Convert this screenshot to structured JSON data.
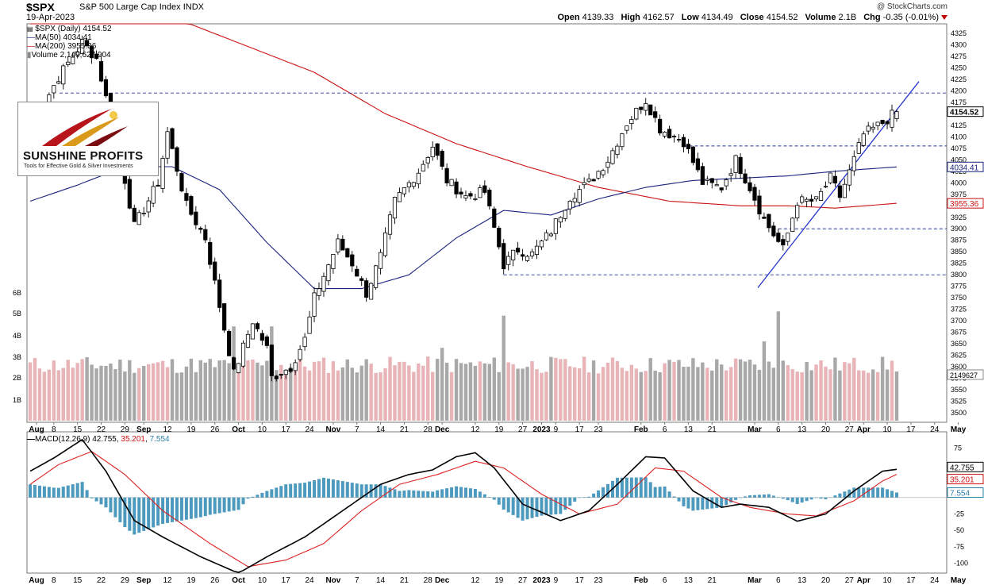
{
  "header": {
    "symbol": "$SPX",
    "name": "S&P 500 Large Cap Index",
    "exchange": "INDX",
    "date": "19-Apr-2023",
    "copyright": "@ StockCharts.com",
    "open_label": "Open",
    "open": "4139.33",
    "high_label": "High",
    "high": "4162.57",
    "low_label": "Low",
    "low": "4134.49",
    "close_label": "Close",
    "close": "4154.52",
    "volume_label": "Volume",
    "volume": "2.1B",
    "chg_label": "Chg",
    "chg": "-0.35 (-0.01%)"
  },
  "legend": {
    "price": "$SPX (Daily) 4154.52",
    "ma50": "MA(50) 4034.41",
    "ma200": "MA(200) 3955.36",
    "volume": "Volume 2,149,627,904"
  },
  "logo": {
    "brand": "SUNSHINE PROFITS",
    "tagline": "Tools for Effective Gold & Silver Investments"
  },
  "colors": {
    "ma50": "#1a237e",
    "ma200": "#cc1111",
    "vol_up": "#e8b4b8",
    "vol_down": "#a8a8a8",
    "macd_line": "#000000",
    "signal_line": "#dd2222",
    "histogram": "#3a8fb7",
    "trendline": "#2233cc"
  },
  "chart_data": [
    {
      "type": "candlestick",
      "title": "",
      "y_axis_ticks": [
        3500,
        3525,
        3550,
        3575,
        3600,
        3625,
        3650,
        3675,
        3700,
        3725,
        3750,
        3775,
        3800,
        3825,
        3850,
        3875,
        3900,
        3925,
        3950,
        3975,
        4000,
        4025,
        4050,
        4075,
        4100,
        4125,
        4150,
        4175,
        4200,
        4225,
        4250,
        4275,
        4300,
        4325
      ],
      "ylim": [
        3490,
        4335
      ],
      "x_labels": [
        "Aug",
        "8",
        "15",
        "22",
        "29",
        "Sep",
        "12",
        "19",
        "26",
        "Oct",
        "10",
        "17",
        "24",
        "Nov",
        "7",
        "14",
        "21",
        "28",
        "Dec",
        "12",
        "19",
        "27",
        "2023",
        "9",
        "17",
        "23",
        "Feb",
        "6",
        "13",
        "21",
        "Mar",
        "6",
        "13",
        "20",
        "27",
        "Apr",
        "10",
        "17",
        "24",
        "May"
      ],
      "key_prices": [
        {
          "date": "Aug 1",
          "close": 4118
        },
        {
          "date": "Aug 16",
          "close": 4305
        },
        {
          "date": "Aug 26",
          "close": 4057
        },
        {
          "date": "Sep 12",
          "close": 4110
        },
        {
          "date": "Sep 30",
          "close": 3585
        },
        {
          "date": "Oct 12",
          "close": 3577
        },
        {
          "date": "Oct 13",
          "low": 3491
        },
        {
          "date": "Nov 30",
          "close": 4080
        },
        {
          "date": "Dec 13",
          "high": 4100
        },
        {
          "date": "Dec 22",
          "close": 3822
        },
        {
          "date": "Feb 2",
          "close": 4180
        },
        {
          "date": "Mar 13",
          "close": 3855
        },
        {
          "date": "Apr 19",
          "close": 4154.52
        }
      ],
      "horizontal_levels": [
        4195,
        4080,
        3900,
        3800
      ],
      "last_price_label": "4154.52",
      "ma50_label": "4034.41",
      "ma200_label": "3955.36"
    },
    {
      "type": "bar",
      "title": "Volume",
      "y_axis_ticks": [
        "1B",
        "2B",
        "3B",
        "4B",
        "5B",
        "6B"
      ],
      "last_volume_label": "2149627"
    },
    {
      "type": "line",
      "title": "MACD(12,26,9)",
      "series": [
        {
          "name": "MACD(12,26,9)",
          "last": "42.755"
        },
        {
          "name": "signal",
          "last": "35.201"
        },
        {
          "name": "histogram",
          "last": "7.554"
        }
      ],
      "y_axis_ticks": [
        75,
        50,
        25,
        -25,
        -50,
        -75,
        -100
      ],
      "ylim": [
        -110,
        95
      ],
      "key_macd": [
        {
          "date": "Aug 1",
          "macd": 40
        },
        {
          "date": "Aug 16",
          "macd": 88
        },
        {
          "date": "Sep 5",
          "macd": -35
        },
        {
          "date": "Oct 3",
          "macd": -115
        },
        {
          "date": "Oct 14",
          "macd": -90
        },
        {
          "date": "Nov 30",
          "macd": 42
        },
        {
          "date": "Dec 10",
          "macd": 68
        },
        {
          "date": "Jan 3",
          "macd": -35
        },
        {
          "date": "Feb 3",
          "macd": 62
        },
        {
          "date": "Mar 13",
          "macd": -15
        },
        {
          "date": "Mar 20",
          "macd": -36
        },
        {
          "date": "Apr 19",
          "macd": 42.755
        }
      ]
    }
  ]
}
